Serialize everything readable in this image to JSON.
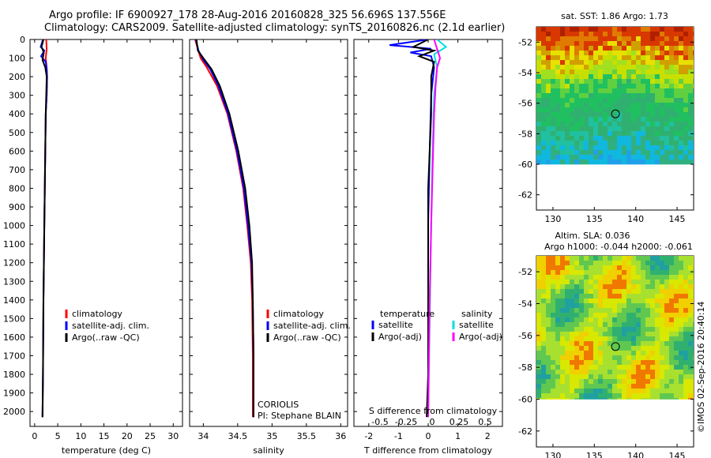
{
  "header": {
    "line1": "Argo profile: IF 6900927_178 28-Aug-2016 20160828_325 56.696S 137.556E",
    "line2": "Climatology: CARS2009. Satellite-adjusted climatology: synTS_20160826.nc (2.1d earlier)"
  },
  "colors": {
    "climatology": "#ff0000",
    "satellite": "#0000ff",
    "argo": "#000000",
    "sal_satellite": "#00e0e0",
    "sal_argo": "#ff00ff"
  },
  "watermark": "©IMOS 02-Sep-2016 20:40:14",
  "chart_data": [
    {
      "type": "line",
      "panel": "temperature",
      "xlabel": "temperature (deg C)",
      "ylabel": "",
      "xlim": [
        -1,
        32
      ],
      "ylim": [
        2080,
        0
      ],
      "xticks": [
        0,
        5,
        10,
        15,
        20,
        25,
        30
      ],
      "yticks": [
        0,
        100,
        200,
        300,
        400,
        500,
        600,
        700,
        800,
        900,
        1000,
        1100,
        1200,
        1300,
        1400,
        1500,
        1600,
        1700,
        1800,
        1900,
        2000
      ],
      "legend": [
        "climatology",
        "satellite-adj. clim.",
        "Argo(..raw -QC)"
      ],
      "legend_placement": "middle",
      "series": [
        {
          "name": "climatology",
          "color": "red",
          "points": [
            [
              2.5,
              0
            ],
            [
              2.6,
              50
            ],
            [
              2.4,
              100
            ],
            [
              2.6,
              150
            ],
            [
              2.7,
              200
            ],
            [
              2.6,
              300
            ],
            [
              2.4,
              400
            ],
            [
              2.3,
              600
            ],
            [
              2.2,
              800
            ],
            [
              2.1,
              1000
            ],
            [
              1.9,
              1400
            ],
            [
              1.8,
              1800
            ],
            [
              1.7,
              2030
            ]
          ]
        },
        {
          "name": "satellite-adj. clim.",
          "color": "blue",
          "points": [
            [
              1.8,
              0
            ],
            [
              1.3,
              40
            ],
            [
              2.1,
              60
            ],
            [
              1.4,
              90
            ],
            [
              2.4,
              120
            ],
            [
              2.6,
              160
            ],
            [
              2.7,
              200
            ],
            [
              2.6,
              300
            ],
            [
              2.4,
              400
            ],
            [
              2.3,
              600
            ],
            [
              2.2,
              800
            ],
            [
              2.1,
              1000
            ],
            [
              1.9,
              1400
            ],
            [
              1.8,
              1800
            ],
            [
              1.7,
              2030
            ]
          ]
        },
        {
          "name": "Argo(..raw -QC)",
          "color": "black",
          "points": [
            [
              1.9,
              0
            ],
            [
              1.5,
              40
            ],
            [
              2.0,
              70
            ],
            [
              1.7,
              110
            ],
            [
              2.3,
              150
            ],
            [
              2.6,
              200
            ],
            [
              2.5,
              300
            ],
            [
              2.4,
              400
            ],
            [
              2.3,
              600
            ],
            [
              2.2,
              800
            ],
            [
              2.1,
              1000
            ],
            [
              1.9,
              1400
            ],
            [
              1.8,
              1800
            ],
            [
              1.7,
              2030
            ]
          ]
        }
      ]
    },
    {
      "type": "line",
      "panel": "salinity",
      "xlabel": "salinity",
      "xlim": [
        33.8,
        36.1
      ],
      "ylim": [
        2080,
        0
      ],
      "xticks": [
        34,
        34.5,
        35,
        35.5,
        36
      ],
      "legend": [
        "climatology",
        "satellite-adj. clim.",
        "Argo(..raw -QC)"
      ],
      "annotation": [
        "CORIOLIS",
        "PI: Stephane BLAIN"
      ],
      "series": [
        {
          "name": "climatology",
          "color": "red",
          "points": [
            [
              33.88,
              0
            ],
            [
              33.92,
              50
            ],
            [
              33.96,
              100
            ],
            [
              34.05,
              150
            ],
            [
              34.2,
              250
            ],
            [
              34.35,
              400
            ],
            [
              34.48,
              600
            ],
            [
              34.58,
              800
            ],
            [
              34.64,
              1000
            ],
            [
              34.69,
              1200
            ],
            [
              34.71,
              1400
            ],
            [
              34.72,
              1700
            ],
            [
              34.72,
              2030
            ]
          ]
        },
        {
          "name": "satellite-adj. clim.",
          "color": "blue",
          "points": [
            [
              33.89,
              0
            ],
            [
              33.93,
              60
            ],
            [
              34.0,
              110
            ],
            [
              34.1,
              160
            ],
            [
              34.22,
              250
            ],
            [
              34.36,
              400
            ],
            [
              34.49,
              600
            ],
            [
              34.59,
              800
            ],
            [
              34.65,
              1000
            ],
            [
              34.7,
              1200
            ],
            [
              34.72,
              1400
            ],
            [
              34.73,
              1700
            ],
            [
              34.73,
              2030
            ]
          ]
        },
        {
          "name": "Argo(..raw -QC)",
          "color": "black",
          "points": [
            [
              33.9,
              0
            ],
            [
              33.92,
              60
            ],
            [
              34.02,
              110
            ],
            [
              34.12,
              160
            ],
            [
              34.24,
              250
            ],
            [
              34.38,
              400
            ],
            [
              34.51,
              600
            ],
            [
              34.61,
              800
            ],
            [
              34.67,
              1000
            ],
            [
              34.71,
              1200
            ],
            [
              34.72,
              1400
            ],
            [
              34.73,
              1700
            ],
            [
              34.73,
              2030
            ]
          ]
        }
      ]
    },
    {
      "type": "line",
      "panel": "difference",
      "xlabel": "T difference from climatology",
      "xlabel_top": "S difference from climatology",
      "xlim": [
        -2.5,
        2.5
      ],
      "ylim": [
        2080,
        0
      ],
      "xticks_T": [
        -2,
        -1,
        0,
        1,
        2
      ],
      "xticks_S": [
        "-0.5",
        "-0.25",
        "0",
        "0.25",
        "0.5"
      ],
      "legend_left_title": "temperature",
      "legend_right_title": "salinity",
      "legend": [
        "satellite",
        "Argo(-adj)",
        "satellite",
        "Argo(-adj)"
      ],
      "series": [
        {
          "name": "T satellite",
          "color": "blue",
          "points": [
            [
              0,
              0
            ],
            [
              -1.3,
              30
            ],
            [
              0.1,
              50
            ],
            [
              -0.6,
              70
            ],
            [
              0.1,
              90
            ],
            [
              0.2,
              150
            ],
            [
              0.1,
              300
            ],
            [
              0.05,
              600
            ],
            [
              0.0,
              1000
            ],
            [
              0.0,
              2030
            ]
          ]
        },
        {
          "name": "T Argo(-adj)",
          "color": "black",
          "points": [
            [
              0,
              0
            ],
            [
              -0.5,
              40
            ],
            [
              0.2,
              60
            ],
            [
              -0.3,
              90
            ],
            [
              0.2,
              120
            ],
            [
              0.1,
              200
            ],
            [
              0.1,
              400
            ],
            [
              0.0,
              800
            ],
            [
              0.0,
              1800
            ],
            [
              -0.05,
              2030
            ]
          ]
        },
        {
          "name": "S satellite",
          "color": "cyan",
          "points": [
            [
              0.3,
              0
            ],
            [
              0.6,
              40
            ],
            [
              0.2,
              80
            ],
            [
              0.3,
              150
            ],
            [
              0.2,
              300
            ],
            [
              0.15,
              600
            ],
            [
              0.1,
              1000
            ],
            [
              0.05,
              1500
            ],
            [
              0.0,
              2030
            ]
          ]
        },
        {
          "name": "S Argo(-adj)",
          "color": "magenta",
          "points": [
            [
              0.2,
              0
            ],
            [
              0.4,
              100
            ],
            [
              0.3,
              150
            ],
            [
              0.25,
              250
            ],
            [
              0.2,
              400
            ],
            [
              0.15,
              700
            ],
            [
              0.1,
              1000
            ],
            [
              0.05,
              1400
            ],
            [
              0.0,
              2030
            ]
          ]
        }
      ]
    },
    {
      "type": "heatmap",
      "panel": "sst_map",
      "title": "sat. SST: 1.86 Argo: 1.73",
      "xlim": [
        128,
        147
      ],
      "ylim": [
        -63,
        -51
      ],
      "xticks": [
        130,
        135,
        140,
        145
      ],
      "yticks": [
        -52,
        -54,
        -56,
        -58,
        -60,
        -62
      ],
      "marker": [
        137.556,
        -56.696
      ]
    },
    {
      "type": "heatmap",
      "panel": "sla_map",
      "title": "Altim. SLA: 0.036",
      "subtitle": "Argo h1000: -0.044 h2000: -0.061",
      "xlim": [
        128,
        147
      ],
      "ylim": [
        -63,
        -51
      ],
      "xticks": [
        130,
        135,
        140,
        145
      ],
      "yticks": [
        -52,
        -54,
        -56,
        -58,
        -60,
        -62
      ],
      "marker": [
        137.556,
        -56.696
      ]
    }
  ]
}
